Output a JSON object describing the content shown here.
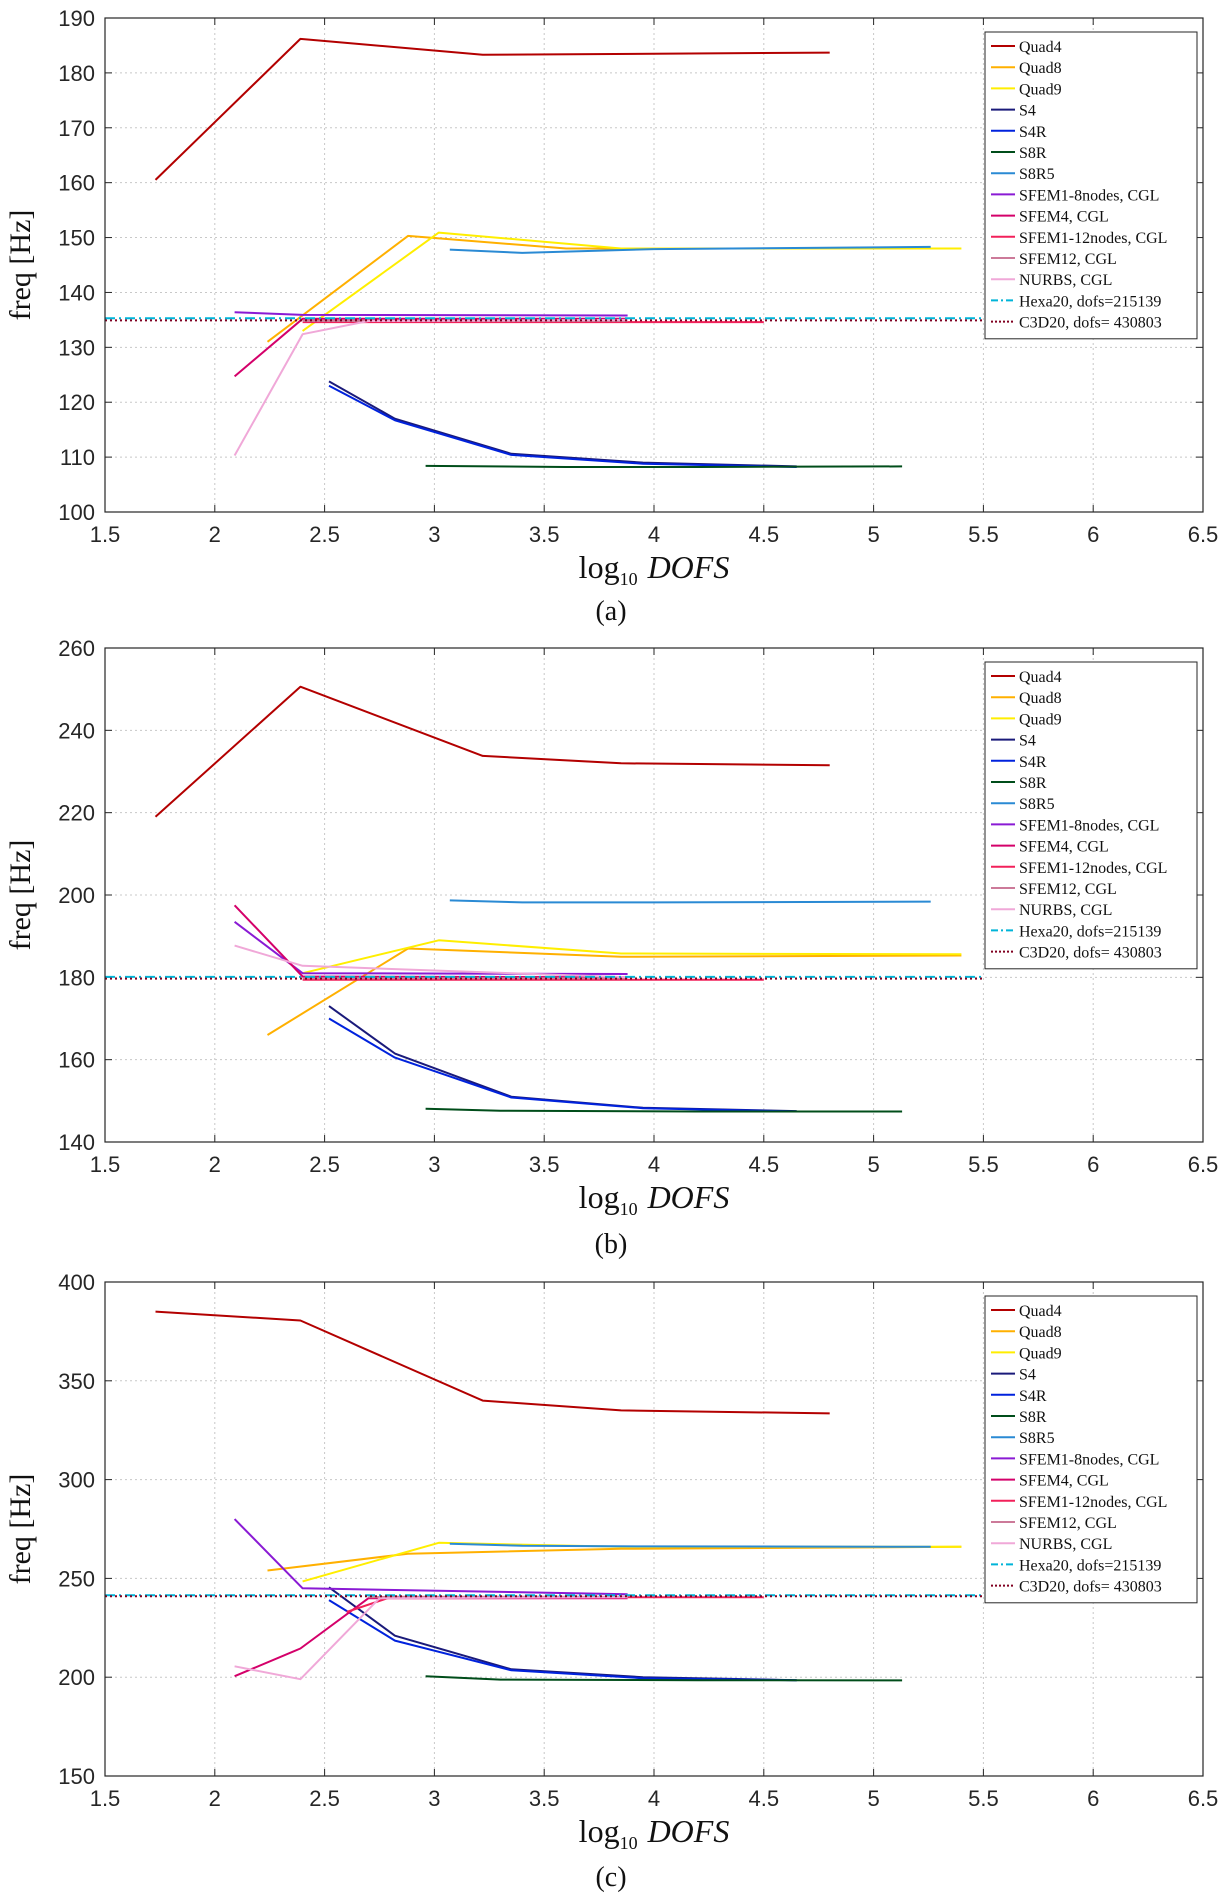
{
  "figure": {
    "panel_labels": [
      "(a)",
      "(b)",
      "(c)"
    ]
  },
  "chart_data": [
    {
      "type": "line",
      "panel": "(a)",
      "xlabel_base": "log",
      "xlabel_sub": "10",
      "xlabel_var": "DOFS",
      "ylabel": "freq [Hz]",
      "xlim": [
        1.5,
        6.5
      ],
      "ylim": [
        100,
        190
      ],
      "xticks": [
        1.5,
        2,
        2.5,
        3,
        3.5,
        4,
        4.5,
        5,
        5.5,
        6,
        6.5
      ],
      "xtick_labels": [
        "1.5",
        "2",
        "2.5",
        "3",
        "3.5",
        "4",
        "4.5",
        "5",
        "5.5",
        "6",
        "6.5"
      ],
      "yticks": [
        100,
        110,
        120,
        130,
        140,
        150,
        160,
        170,
        180,
        190
      ],
      "ytick_labels": [
        "100",
        "110",
        "120",
        "130",
        "140",
        "150",
        "160",
        "170",
        "180",
        "190"
      ],
      "grid": true,
      "legend_position": "top-right",
      "series": [
        {
          "name": "Quad4",
          "color": "#b30000",
          "dash": "solid",
          "x": [
            1.73,
            2.39,
            3.22,
            4.8
          ],
          "y": [
            160.5,
            186.2,
            183.3,
            183.7
          ]
        },
        {
          "name": "Quad8",
          "color": "#ffb000",
          "dash": "solid",
          "x": [
            2.24,
            2.88,
            3.6,
            5.26
          ],
          "y": [
            131,
            150.3,
            148,
            148
          ]
        },
        {
          "name": "Quad9",
          "color": "#ffee00",
          "dash": "solid",
          "x": [
            2.4,
            3.02,
            3.85,
            5.4
          ],
          "y": [
            133,
            150.9,
            148,
            148
          ]
        },
        {
          "name": "S4",
          "color": "#1a1a7a",
          "dash": "solid",
          "x": [
            2.52,
            2.82,
            3.35,
            3.95,
            4.65
          ],
          "y": [
            123.8,
            117,
            110.6,
            109,
            108.3
          ]
        },
        {
          "name": "S4R",
          "color": "#0022dd",
          "dash": "solid",
          "x": [
            2.52,
            2.82,
            3.35,
            3.95,
            4.65
          ],
          "y": [
            123,
            116.7,
            110.4,
            108.8,
            108.2
          ]
        },
        {
          "name": "S8R",
          "color": "#004d1a",
          "dash": "solid",
          "x": [
            2.96,
            3.6,
            4.2,
            5.13
          ],
          "y": [
            108.4,
            108.2,
            108.2,
            108.3
          ]
        },
        {
          "name": "S8R5",
          "color": "#2a8ad4",
          "dash": "solid",
          "x": [
            3.07,
            3.4,
            4.0,
            5.26
          ],
          "y": [
            147.8,
            147.2,
            147.9,
            148.3
          ]
        },
        {
          "name": "SFEM1-8nodes, CGL",
          "color": "#8a1ad4",
          "dash": "solid",
          "x": [
            2.09,
            2.4,
            3.88
          ],
          "y": [
            136.4,
            135.9,
            135.8
          ]
        },
        {
          "name": "SFEM4, CGL",
          "color": "#d4006a",
          "dash": "solid",
          "x": [
            2.09,
            2.4,
            3.88
          ],
          "y": [
            124.7,
            135.2,
            135.2
          ]
        },
        {
          "name": "SFEM1-12nodes, CGL",
          "color": "#f2205a",
          "dash": "solid",
          "x": [
            2.4,
            2.8,
            4.5
          ],
          "y": [
            134.6,
            134.6,
            134.6
          ]
        },
        {
          "name": "SFEM12, CGL",
          "color": "#cc7a99",
          "dash": "solid",
          "x": [
            2.4,
            2.8,
            3.88
          ],
          "y": [
            134.8,
            134.8,
            134.8
          ]
        },
        {
          "name": "NURBS, CGL",
          "color": "#f0a8d8",
          "dash": "solid",
          "x": [
            2.09,
            2.4,
            2.7,
            3.88
          ],
          "y": [
            110.3,
            132.4,
            134.8,
            135.0
          ]
        },
        {
          "name": "Hexa20, dofs=215139",
          "color": "#00b4d8",
          "dash": "dashdot",
          "x": [
            1.5,
            5.5
          ],
          "y": [
            135.3,
            135.3
          ]
        },
        {
          "name": "C3D20, dofs= 430803",
          "color": "#800020",
          "dash": "dotted",
          "x": [
            1.5,
            5.5
          ],
          "y": [
            134.9,
            134.9
          ]
        }
      ]
    },
    {
      "type": "line",
      "panel": "(b)",
      "xlabel_base": "log",
      "xlabel_sub": "10",
      "xlabel_var": "DOFS",
      "ylabel": "freq [Hz]",
      "xlim": [
        1.5,
        6.5
      ],
      "ylim": [
        140,
        260
      ],
      "xticks": [
        1.5,
        2,
        2.5,
        3,
        3.5,
        4,
        4.5,
        5,
        5.5,
        6,
        6.5
      ],
      "xtick_labels": [
        "1.5",
        "2",
        "2.5",
        "3",
        "3.5",
        "4",
        "4.5",
        "5",
        "5.5",
        "6",
        "6.5"
      ],
      "yticks": [
        140,
        160,
        180,
        200,
        220,
        240,
        260
      ],
      "ytick_labels": [
        "140",
        "160",
        "180",
        "200",
        "220",
        "240",
        "260"
      ],
      "grid": true,
      "legend_position": "top-right",
      "series": [
        {
          "name": "Quad4",
          "color": "#b30000",
          "dash": "solid",
          "x": [
            1.73,
            2.39,
            3.22,
            3.85,
            4.8
          ],
          "y": [
            219,
            250.6,
            233.8,
            232,
            231.5
          ]
        },
        {
          "name": "Quad8",
          "color": "#ffb000",
          "dash": "solid",
          "x": [
            2.24,
            2.88,
            3.85,
            5.4
          ],
          "y": [
            166,
            187,
            185,
            185.3
          ]
        },
        {
          "name": "Quad9",
          "color": "#ffee00",
          "dash": "solid",
          "x": [
            2.4,
            3.02,
            3.85,
            5.4
          ],
          "y": [
            181,
            189,
            185.8,
            185.6
          ]
        },
        {
          "name": "S4",
          "color": "#1a1a7a",
          "dash": "solid",
          "x": [
            2.52,
            2.82,
            3.35,
            3.95,
            4.65
          ],
          "y": [
            173,
            161.5,
            151,
            148.3,
            147.5
          ]
        },
        {
          "name": "S4R",
          "color": "#0022dd",
          "dash": "solid",
          "x": [
            2.52,
            2.82,
            3.35,
            3.95,
            4.65
          ],
          "y": [
            170,
            160.5,
            150.8,
            148.2,
            147.4
          ]
        },
        {
          "name": "S8R",
          "color": "#004d1a",
          "dash": "solid",
          "x": [
            2.96,
            3.3,
            4.2,
            5.13
          ],
          "y": [
            148.1,
            147.6,
            147.4,
            147.4
          ]
        },
        {
          "name": "S8R5",
          "color": "#2a8ad4",
          "dash": "solid",
          "x": [
            3.07,
            3.4,
            4.0,
            5.26
          ],
          "y": [
            198.7,
            198.2,
            198.2,
            198.4
          ]
        },
        {
          "name": "SFEM1-8nodes, CGL",
          "color": "#8a1ad4",
          "dash": "solid",
          "x": [
            2.09,
            2.4,
            3.88
          ],
          "y": [
            193.5,
            181,
            180.8
          ]
        },
        {
          "name": "SFEM4, CGL",
          "color": "#d4006a",
          "dash": "solid",
          "x": [
            2.09,
            2.4,
            3.88
          ],
          "y": [
            197.5,
            180.2,
            180
          ]
        },
        {
          "name": "SFEM1-12nodes, CGL",
          "color": "#f2205a",
          "dash": "solid",
          "x": [
            2.4,
            2.6,
            4.5
          ],
          "y": [
            179.4,
            179.4,
            179.4
          ]
        },
        {
          "name": "SFEM12, CGL",
          "color": "#cc7a99",
          "dash": "solid",
          "x": [
            2.4,
            2.6,
            3.88
          ],
          "y": [
            179.8,
            179.8,
            179.8
          ]
        },
        {
          "name": "NURBS, CGL",
          "color": "#f0a8d8",
          "dash": "solid",
          "x": [
            2.09,
            2.4,
            3.88
          ],
          "y": [
            187.7,
            182.8,
            180
          ]
        },
        {
          "name": "Hexa20, dofs=215139",
          "color": "#00b4d8",
          "dash": "dashdot",
          "x": [
            1.5,
            5.5
          ],
          "y": [
            180.1,
            180.1
          ]
        },
        {
          "name": "C3D20, dofs= 430803",
          "color": "#800020",
          "dash": "dotted",
          "x": [
            1.5,
            5.5
          ],
          "y": [
            179.7,
            179.7
          ]
        }
      ]
    },
    {
      "type": "line",
      "panel": "(c)",
      "xlabel_base": "log",
      "xlabel_sub": "10",
      "xlabel_var": "DOFS",
      "ylabel": "freq [Hz]",
      "xlim": [
        1.5,
        6.5
      ],
      "ylim": [
        150,
        400
      ],
      "xticks": [
        1.5,
        2,
        2.5,
        3,
        3.5,
        4,
        4.5,
        5,
        5.5,
        6,
        6.5
      ],
      "xtick_labels": [
        "1.5",
        "2",
        "2.5",
        "3",
        "3.5",
        "4",
        "4.5",
        "5",
        "5.5",
        "6",
        "6.5"
      ],
      "yticks": [
        150,
        200,
        250,
        300,
        350,
        400
      ],
      "ytick_labels": [
        "150",
        "200",
        "250",
        "300",
        "350",
        "400"
      ],
      "grid": true,
      "legend_position": "top-right",
      "series": [
        {
          "name": "Quad4",
          "color": "#b30000",
          "dash": "solid",
          "x": [
            1.73,
            2.39,
            3.22,
            3.85,
            4.8
          ],
          "y": [
            385,
            380.5,
            340,
            335,
            333.5
          ]
        },
        {
          "name": "Quad8",
          "color": "#ffb000",
          "dash": "solid",
          "x": [
            2.24,
            2.88,
            3.85,
            5.4
          ],
          "y": [
            254,
            262.5,
            265,
            266
          ]
        },
        {
          "name": "Quad9",
          "color": "#ffee00",
          "dash": "solid",
          "x": [
            2.4,
            3.02,
            3.85,
            5.4
          ],
          "y": [
            248.5,
            268,
            266,
            266
          ]
        },
        {
          "name": "S4",
          "color": "#1a1a7a",
          "dash": "solid",
          "x": [
            2.52,
            2.82,
            3.35,
            3.95,
            4.65
          ],
          "y": [
            245.5,
            221,
            204,
            200,
            198.5
          ]
        },
        {
          "name": "S4R",
          "color": "#0022dd",
          "dash": "solid",
          "x": [
            2.52,
            2.82,
            3.35,
            3.95,
            4.65
          ],
          "y": [
            239,
            218.5,
            203.5,
            199.5,
            198.5
          ]
        },
        {
          "name": "S8R",
          "color": "#004d1a",
          "dash": "solid",
          "x": [
            2.96,
            3.3,
            4.2,
            5.13
          ],
          "y": [
            200.5,
            198.8,
            198.5,
            198.4
          ]
        },
        {
          "name": "S8R5",
          "color": "#2a8ad4",
          "dash": "solid",
          "x": [
            3.07,
            3.4,
            4.0,
            5.26
          ],
          "y": [
            267.5,
            266.5,
            266.2,
            266
          ]
        },
        {
          "name": "SFEM1-8nodes, CGL",
          "color": "#8a1ad4",
          "dash": "solid",
          "x": [
            2.09,
            2.4,
            3.88
          ],
          "y": [
            280,
            245,
            242
          ]
        },
        {
          "name": "SFEM4, CGL",
          "color": "#d4006a",
          "dash": "solid",
          "x": [
            2.09,
            2.39,
            2.7,
            3.88
          ],
          "y": [
            200.5,
            214.5,
            240,
            240
          ]
        },
        {
          "name": "SFEM1-12nodes, CGL",
          "color": "#f2205a",
          "dash": "solid",
          "x": [
            2.6,
            2.8,
            4.5
          ],
          "y": [
            233,
            240.5,
            240.5
          ]
        },
        {
          "name": "SFEM12, CGL",
          "color": "#cc7a99",
          "dash": "solid",
          "x": [
            2.7,
            2.8,
            3.88
          ],
          "y": [
            240.5,
            240.7,
            240.7
          ]
        },
        {
          "name": "NURBS, CGL",
          "color": "#f0a8d8",
          "dash": "solid",
          "x": [
            2.09,
            2.39,
            2.75,
            3.88
          ],
          "y": [
            205.5,
            199,
            240,
            240.5
          ]
        },
        {
          "name": "Hexa20, dofs=215139",
          "color": "#00b4d8",
          "dash": "dashdot",
          "x": [
            1.5,
            5.5
          ],
          "y": [
            241.5,
            241.5
          ]
        },
        {
          "name": "C3D20, dofs= 430803",
          "color": "#800020",
          "dash": "dotted",
          "x": [
            1.5,
            5.5
          ],
          "y": [
            241,
            241
          ]
        }
      ]
    }
  ]
}
